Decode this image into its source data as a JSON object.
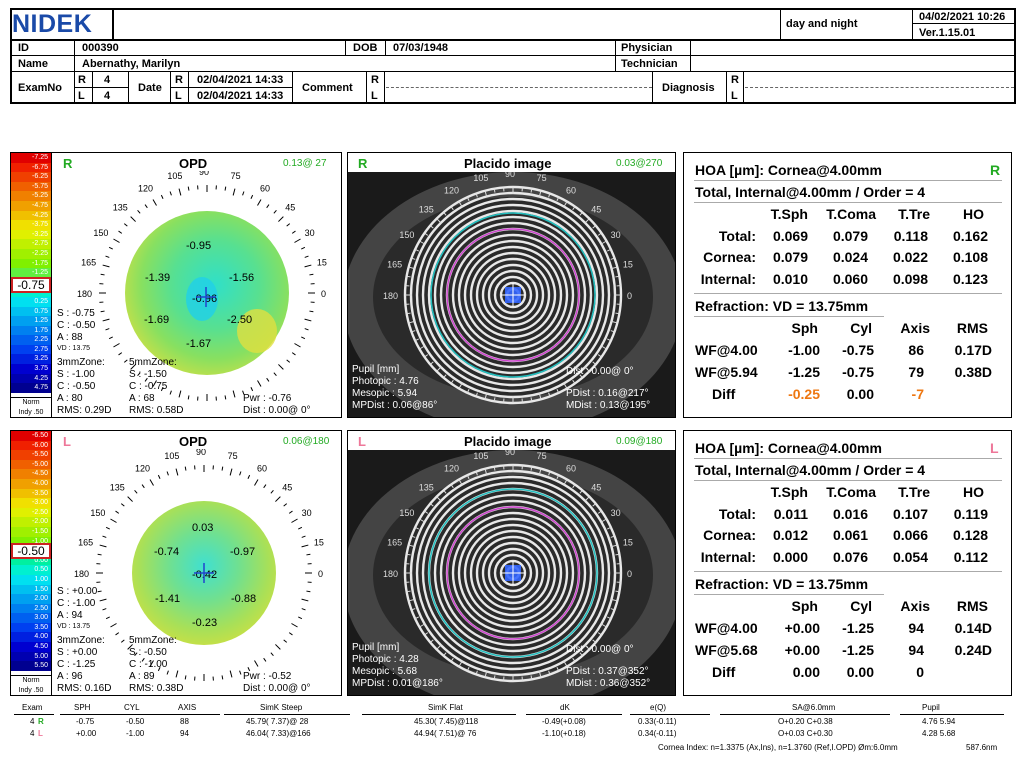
{
  "header": {
    "logo": "NIDEK",
    "mode": "day and night",
    "datetime": "04/02/2021 10:26",
    "version": "Ver.1.15.01",
    "id_label": "ID",
    "id_value": "000390",
    "dob_label": "DOB",
    "dob_value": "07/03/1948",
    "physician_label": "Physician",
    "name_label": "Name",
    "name_value": "Abernathy,  Marilyn",
    "technician_label": "Technician",
    "examno_label": "ExamNo",
    "exam_r": "4",
    "exam_l": "4",
    "r": "R",
    "l": "L",
    "date_label": "Date",
    "date_r": "02/04/2021 14:33",
    "date_l": "02/04/2021 14:33",
    "comment_label": "Comment",
    "diagnosis_label": "Diagnosis"
  },
  "scale": {
    "right": [
      "-7.25",
      "-6.75",
      "-6.25",
      "-5.75",
      "-5.25",
      "-4.75",
      "-4.25",
      "-3.75",
      "-3.25",
      "-2.75",
      "-2.25",
      "-1.75",
      "-1.25",
      "-0.75",
      "-0.25",
      "0.25",
      "0.75",
      "1.25",
      "1.75",
      "2.25",
      "2.75",
      "3.25",
      "3.75",
      "4.25",
      "4.75"
    ],
    "left": [
      "-6.50",
      "-6.00",
      "-5.50",
      "-5.00",
      "-4.50",
      "-4.00",
      "-3.50",
      "-3.00",
      "-2.50",
      "-2.00",
      "-1.50",
      "-1.00",
      "-0.50",
      "0.00",
      "0.50",
      "1.00",
      "1.50",
      "2.00",
      "2.50",
      "3.00",
      "3.50",
      "4.00",
      "4.50",
      "5.00",
      "5.50"
    ],
    "right_selected": "-0.75",
    "left_selected": "-0.50",
    "norm": "Norm",
    "indy": "Indy .50"
  },
  "right_opd": {
    "eye": "R",
    "title": "OPD",
    "corner": "0.13@ 27",
    "values": [
      "-0.95",
      "-1.39",
      "-1.56",
      "-0.96",
      "-1.69",
      "-2.50",
      "-1.67"
    ],
    "s": "S : -0.75",
    "c": "C : -0.50",
    "a": "A : 88",
    "vd": "VD : 13.75",
    "z3": "3mmZone:",
    "z5": "5mmZone:",
    "s3": "S : -1.00",
    "c3": "C : -0.50",
    "a3": "A : 80",
    "rms3": "RMS: 0.29D",
    "s5": "S : -1.50",
    "c5": "C : -0.75",
    "a5": "A : 68",
    "rms5": "RMS: 0.58D",
    "pwr": "Pwr : -0.76",
    "dist": "Dist : 0.00@ 0°"
  },
  "left_opd": {
    "eye": "L",
    "title": "OPD",
    "corner": "0.06@180",
    "values": [
      "0.03",
      "-0.74",
      "-0.97",
      "-0.42",
      "-1.41",
      "-0.88",
      "-0.23"
    ],
    "s": "S : +0.00",
    "c": "C : -1.00",
    "a": "A : 94",
    "vd": "VD : 13.75",
    "z3": "3mmZone:",
    "z5": "5mmZone:",
    "s3": "S : +0.00",
    "c3": "C : -1.25",
    "a3": "A : 96",
    "rms3": "RMS: 0.16D",
    "s5": "S : -0.50",
    "c5": "C : -1.00",
    "a5": "A : 89",
    "rms5": "RMS: 0.38D",
    "pwr": "Pwr : -0.52",
    "dist": "Dist : 0.00@ 0°"
  },
  "axis_labels": [
    "90",
    "75",
    "60",
    "45",
    "30",
    "15",
    "0",
    "165",
    "150",
    "135",
    "120",
    "105",
    "180"
  ],
  "right_placido": {
    "eye": "R",
    "title": "Placido image",
    "corner": "0.03@270",
    "pupil": "Pupil [mm]",
    "photopic": "Photopic : 4.76",
    "mesopic": "Mesopic : 5.94",
    "mpdist": "MPDist : 0.06@86°",
    "dist": "Dist : 0.00@ 0°",
    "pdist": "PDist : 0.16@217°",
    "mdist": "MDist : 0.13@195°"
  },
  "left_placido": {
    "eye": "L",
    "title": "Placido image",
    "corner": "0.09@180",
    "pupil": "Pupil [mm]",
    "photopic": "Photopic : 4.28",
    "mesopic": "Mesopic : 5.68",
    "mpdist": "MPDist : 0.01@186°",
    "dist": "Dist : 0.00@ 0°",
    "pdist": "PDist : 0.37@352°",
    "mdist": "MDist : 0.36@352°"
  },
  "right_hoa": {
    "title": "HOA [µm]: Cornea@4.00mm",
    "eye": "R",
    "total_title": "Total, Internal@4.00mm / Order = 4",
    "cols": [
      "T.Sph",
      "T.Coma",
      "T.Tre",
      "HO"
    ],
    "rows": [
      {
        "label": "Total:",
        "v": [
          "0.069",
          "0.079",
          "0.118",
          "0.162"
        ]
      },
      {
        "label": "Cornea:",
        "v": [
          "0.079",
          "0.024",
          "0.022",
          "0.108"
        ]
      },
      {
        "label": "Internal:",
        "v": [
          "0.010",
          "0.060",
          "0.098",
          "0.123"
        ]
      }
    ],
    "ref_title": "Refraction: VD = 13.75mm",
    "ref_cols": [
      "Sph",
      "Cyl",
      "Axis",
      "RMS"
    ],
    "ref_rows": [
      {
        "label": "WF@4.00",
        "v": [
          "-1.00",
          "-0.75",
          "86",
          "0.17D"
        ]
      },
      {
        "label": "WF@5.94",
        "v": [
          "-1.25",
          "-0.75",
          "79",
          "0.38D"
        ]
      },
      {
        "label": "Diff",
        "v": [
          "-0.25",
          "0.00",
          "-7",
          ""
        ]
      }
    ]
  },
  "left_hoa": {
    "title": "HOA [µm]: Cornea@4.00mm",
    "eye": "L",
    "total_title": "Total, Internal@4.00mm / Order = 4",
    "cols": [
      "T.Sph",
      "T.Coma",
      "T.Tre",
      "HO"
    ],
    "rows": [
      {
        "label": "Total:",
        "v": [
          "0.011",
          "0.016",
          "0.107",
          "0.119"
        ]
      },
      {
        "label": "Cornea:",
        "v": [
          "0.012",
          "0.061",
          "0.066",
          "0.128"
        ]
      },
      {
        "label": "Internal:",
        "v": [
          "0.000",
          "0.076",
          "0.054",
          "0.112"
        ]
      }
    ],
    "ref_title": "Refraction: VD = 13.75mm",
    "ref_cols": [
      "Sph",
      "Cyl",
      "Axis",
      "RMS"
    ],
    "ref_rows": [
      {
        "label": "WF@4.00",
        "v": [
          "+0.00",
          "-1.25",
          "94",
          "0.14D"
        ]
      },
      {
        "label": "WF@5.68",
        "v": [
          "+0.00",
          "-1.25",
          "94",
          "0.24D"
        ]
      },
      {
        "label": "Diff",
        "v": [
          "0.00",
          "0.00",
          "0",
          ""
        ]
      }
    ]
  },
  "footer": {
    "headers": [
      "Exam",
      "SPH",
      "CYL",
      "AXIS",
      "SimK Steep",
      "SimK Flat",
      "dK",
      "e(Q)",
      "SA@6.0mm",
      "Pupil"
    ],
    "row_r": [
      "4",
      "-0.75",
      "-0.50",
      "88",
      "45.79( 7.37)@ 28",
      "45.30( 7.45)@118",
      "-0.49(+0.08)",
      "0.33(-0.11)",
      "O+0.20  C+0.38",
      "4.76  5.94"
    ],
    "row_l": [
      "4",
      "+0.00",
      "-1.00",
      "94",
      "46.04( 7.33)@166",
      "44.94( 7.51)@ 76",
      "-1.10(+0.18)",
      "0.34(-0.11)",
      "O+0.03  C+0.30",
      "4.28  5.68"
    ],
    "cornea_index": "Cornea Index: n=1.3375 (Ax,Ins), n=1.3760 (Ref,I.OPD)  Øm:6.0mm",
    "wavelength": "587.6nm"
  },
  "colors": {
    "brand": "#1a4aa8",
    "eye_r": "#22aa22",
    "eye_l": "#ee7799",
    "diff": "#ee7711"
  }
}
